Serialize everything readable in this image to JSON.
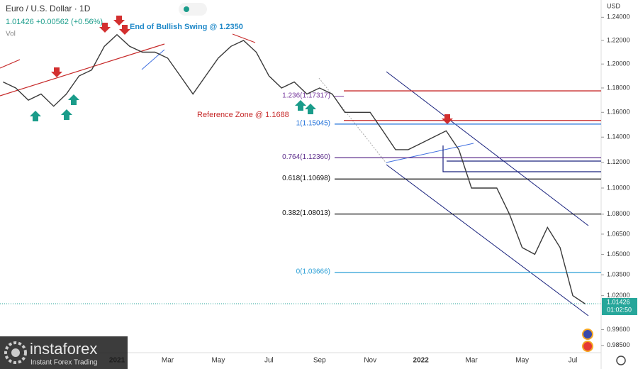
{
  "chart_data": {
    "type": "line",
    "title": "Euro / U.S. Dollar · 1D",
    "subtitle": "1.01426 +0.00562 (+0.56%)",
    "volume_label": "Vol",
    "currency": "USD",
    "log_scale": true,
    "color": "#3a3a3a",
    "categories": [
      null,
      null,
      null,
      null,
      null,
      null,
      null,
      null,
      null,
      "2021",
      null,
      null,
      null,
      "Mar",
      null,
      null,
      null,
      "May",
      null,
      null,
      null,
      "Jul",
      null,
      null,
      null,
      "Sep",
      null,
      null,
      null,
      "Nov",
      null,
      null,
      null,
      "2022",
      null,
      null,
      null,
      "Mar",
      null,
      null,
      null,
      "May",
      null,
      null,
      null,
      "Jul",
      null
    ],
    "values": [
      1.185,
      1.18,
      1.17,
      1.175,
      1.165,
      1.175,
      1.19,
      1.195,
      1.215,
      1.225,
      1.215,
      1.21,
      1.21,
      1.205,
      1.19,
      1.175,
      1.19,
      1.205,
      1.215,
      1.22,
      1.21,
      1.19,
      1.18,
      1.185,
      1.175,
      1.18,
      1.175,
      1.16,
      1.16,
      1.16,
      1.145,
      1.13,
      1.13,
      1.135,
      1.14,
      1.145,
      1.13,
      1.1,
      1.1,
      1.1,
      1.08,
      1.055,
      1.05,
      1.07,
      1.055,
      1.02,
      1.014
    ],
    "ylim": [
      0.98,
      1.252
    ],
    "yticks": [
      {
        "value": 1.24,
        "label": "1.24000"
      },
      {
        "value": 1.22,
        "label": "1.22000"
      },
      {
        "value": 1.2,
        "label": "1.20000"
      },
      {
        "value": 1.18,
        "label": "1.18000"
      },
      {
        "value": 1.16,
        "label": "1.16000"
      },
      {
        "value": 1.14,
        "label": "1.14000"
      },
      {
        "value": 1.12,
        "label": "1.12000"
      },
      {
        "value": 1.1,
        "label": "1.10000"
      },
      {
        "value": 1.08,
        "label": "1.08000"
      },
      {
        "value": 1.065,
        "label": "1.06500"
      },
      {
        "value": 1.05,
        "label": "1.05000"
      },
      {
        "value": 1.035,
        "label": "1.03500"
      },
      {
        "value": 1.02,
        "label": "1.02000"
      },
      {
        "value": 0.996,
        "label": "0.99600"
      },
      {
        "value": 0.985,
        "label": "0.98500"
      }
    ],
    "levels": [
      {
        "label": "1.236(1.17317)",
        "value": 1.17317,
        "color": "#7b3fa0"
      },
      {
        "label": "1(1.15045)",
        "value": 1.15045,
        "color": "#1e6fd9"
      },
      {
        "label": "0.764(1.12360)",
        "value": 1.1236,
        "color": "#5b2c8a"
      },
      {
        "label": "0.618(1.10698)",
        "value": 1.10698,
        "color": "#111111"
      },
      {
        "label": "0.382(1.08013)",
        "value": 1.08013,
        "color": "#111111"
      },
      {
        "label": "0(1.03666)",
        "value": 1.03666,
        "color": "#2a9fd6"
      }
    ],
    "zones": [
      {
        "value": 1.1776,
        "color": "#c62828"
      },
      {
        "value": 1.1534,
        "color": "#c62828"
      }
    ],
    "annotations": [
      "End of Bullish Swing @ 1.2350",
      "Reference Zone @ 1.1688"
    ],
    "last_price": 1.01426,
    "countdown": "01:02:50",
    "brand": "instaforex",
    "tagline": "Instant Forex Trading"
  }
}
